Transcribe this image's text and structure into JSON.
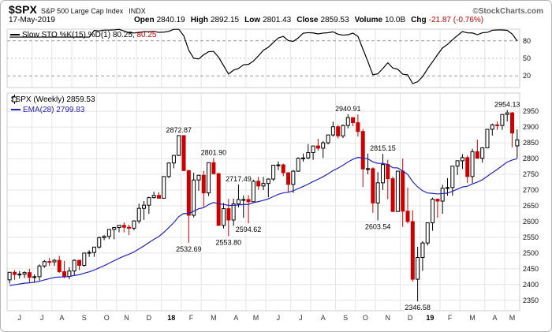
{
  "header": {
    "symbol": "$SPX",
    "name": "S&P 500 Large Cap Index",
    "exchange": "INDX",
    "credit": "©StockCharts.com",
    "date": "17-May-2019",
    "open_label": "Open",
    "open": "2840.19",
    "high_label": "High",
    "high": "2892.15",
    "low_label": "Low",
    "low": "2801.43",
    "close_label": "Close",
    "close": "2859.53",
    "vol_label": "Volume",
    "vol": "10.0B",
    "chg_label": "Chg",
    "chg": "-21.87 (-0.76%)"
  },
  "stoch_legend": {
    "series": "Slow STO %K(15) %D(1)",
    "k": "80.25,",
    "d": "80.25"
  },
  "price_legend": {
    "series": "$SPX (Weekly)",
    "close": "2859.53",
    "ema_name": "EMA(28)",
    "ema_value": "2799.83"
  },
  "colors": {
    "up": "#000000",
    "up_fill": "#ffffff",
    "down": "#cc0000",
    "ema": "#2222bb",
    "stoch": "#000000",
    "grid": "#e4e4e4",
    "ref": "#999999",
    "ref_mid": "#bbbbbb",
    "border": "#cccccc",
    "axis_text": "#111111",
    "month_text": "#333333"
  },
  "chart_data": {
    "type": "candlestick",
    "title": "$SPX (Weekly) with EMA(28) overlay and Slow Stochastic %K(15) %D(1)",
    "x_range": "Jun 2017 - May 2019, weekly bars",
    "y_domain": [
      2317,
      3008
    ],
    "y_ticks": [
      2350,
      2400,
      2450,
      2500,
      2550,
      2600,
      2650,
      2700,
      2750,
      2800,
      2850,
      2900,
      2950
    ],
    "x_tick_labels": [
      "J",
      "J",
      "A",
      "S",
      "O",
      "N",
      "D",
      "18",
      "F",
      "M",
      "A",
      "M",
      "J",
      "J",
      "A",
      "S",
      "O",
      "N",
      "D",
      "19",
      "F",
      "M",
      "A",
      "M"
    ],
    "indicator": {
      "name": "Slow STO %K(15) %D(1)",
      "k_period": 15,
      "slowing": 3,
      "k_value": 80.25,
      "d_value": 80.25,
      "ticks": [
        80,
        50,
        20
      ]
    },
    "overlays": [
      {
        "name": "EMA(28)",
        "period": 28,
        "last_value": 2799.83
      }
    ],
    "annotations": [
      {
        "d": "2018-01-26",
        "text": "2872.87",
        "side": "above"
      },
      {
        "d": "2018-02-09",
        "text": "2532.69",
        "side": "below"
      },
      {
        "d": "2018-03-16",
        "text": "2801.90",
        "side": "above"
      },
      {
        "d": "2018-04-06",
        "text": "2553.80",
        "side": "below"
      },
      {
        "d": "2018-04-20",
        "text": "2717.49",
        "side": "above"
      },
      {
        "d": "2018-05-04",
        "text": "2594.62",
        "side": "below"
      },
      {
        "d": "2018-09-21",
        "text": "2940.91",
        "side": "above"
      },
      {
        "d": "2018-11-02",
        "text": "2603.54",
        "side": "below"
      },
      {
        "d": "2018-11-09",
        "text": "2815.15",
        "side": "above"
      },
      {
        "d": "2018-12-28",
        "text": "2346.58",
        "side": "below"
      },
      {
        "d": "2019-05-03",
        "text": "2954.13",
        "side": "above"
      }
    ],
    "candles": [
      [
        "2017-06-02",
        2415,
        2440,
        2403,
        2439
      ],
      [
        "2017-06-09",
        2439,
        2446,
        2415,
        2432
      ],
      [
        "2017-06-16",
        2432,
        2443,
        2419,
        2433
      ],
      [
        "2017-06-23",
        2433,
        2442,
        2421,
        2438
      ],
      [
        "2017-06-30",
        2438,
        2450,
        2405,
        2423
      ],
      [
        "2017-07-07",
        2423,
        2432,
        2408,
        2425
      ],
      [
        "2017-07-14",
        2425,
        2464,
        2413,
        2459
      ],
      [
        "2017-07-21",
        2459,
        2478,
        2453,
        2473
      ],
      [
        "2017-07-28",
        2473,
        2484,
        2459,
        2472
      ],
      [
        "2017-08-04",
        2472,
        2481,
        2459,
        2477
      ],
      [
        "2017-08-11",
        2477,
        2491,
        2437,
        2441
      ],
      [
        "2017-08-18",
        2441,
        2475,
        2421,
        2426
      ],
      [
        "2017-08-25",
        2426,
        2455,
        2417,
        2443
      ],
      [
        "2017-09-01",
        2443,
        2480,
        2428,
        2477
      ],
      [
        "2017-09-08",
        2477,
        2479,
        2446,
        2461
      ],
      [
        "2017-09-15",
        2461,
        2500,
        2457,
        2500
      ],
      [
        "2017-09-22",
        2500,
        2509,
        2488,
        2502
      ],
      [
        "2017-09-29",
        2502,
        2519,
        2488,
        2519
      ],
      [
        "2017-10-06",
        2519,
        2552,
        2514,
        2549
      ],
      [
        "2017-10-13",
        2549,
        2557,
        2541,
        2553
      ],
      [
        "2017-10-20",
        2553,
        2575,
        2544,
        2575
      ],
      [
        "2017-10-27",
        2575,
        2583,
        2544,
        2581
      ],
      [
        "2017-11-03",
        2581,
        2588,
        2566,
        2588
      ],
      [
        "2017-11-10",
        2588,
        2597,
        2566,
        2582
      ],
      [
        "2017-11-17",
        2582,
        2590,
        2557,
        2579
      ],
      [
        "2017-11-24",
        2579,
        2604,
        2572,
        2602
      ],
      [
        "2017-12-01",
        2602,
        2657,
        2594,
        2642
      ],
      [
        "2017-12-08",
        2642,
        2665,
        2605,
        2652
      ],
      [
        "2017-12-15",
        2652,
        2679,
        2624,
        2676
      ],
      [
        "2017-12-22",
        2676,
        2695,
        2673,
        2683
      ],
      [
        "2017-12-29",
        2683,
        2693,
        2674,
        2674
      ],
      [
        "2018-01-05",
        2674,
        2743,
        2674,
        2743
      ],
      [
        "2018-01-12",
        2743,
        2788,
        2738,
        2786
      ],
      [
        "2018-01-19",
        2786,
        2810,
        2769,
        2810
      ],
      [
        "2018-01-26",
        2810,
        2872.87,
        2808,
        2873
      ],
      [
        "2018-02-02",
        2873,
        2873,
        2760,
        2762
      ],
      [
        "2018-02-09",
        2762,
        2763,
        2532.69,
        2620
      ],
      [
        "2018-02-16",
        2620,
        2755,
        2613,
        2732
      ],
      [
        "2018-02-23",
        2732,
        2748,
        2698,
        2747
      ],
      [
        "2018-03-02",
        2747,
        2761,
        2647,
        2691
      ],
      [
        "2018-03-09",
        2691,
        2787,
        2681,
        2787
      ],
      [
        "2018-03-16",
        2787,
        2801.9,
        2749,
        2752
      ],
      [
        "2018-03-23",
        2752,
        2755,
        2586,
        2588
      ],
      [
        "2018-03-29",
        2588,
        2659,
        2578,
        2641
      ],
      [
        "2018-04-06",
        2641,
        2672,
        2553.8,
        2605
      ],
      [
        "2018-04-13",
        2605,
        2673,
        2586,
        2656
      ],
      [
        "2018-04-20",
        2656,
        2717.49,
        2645,
        2670
      ],
      [
        "2018-04-27",
        2670,
        2683,
        2612,
        2670
      ],
      [
        "2018-05-04",
        2670,
        2684,
        2594.62,
        2663
      ],
      [
        "2018-05-11",
        2663,
        2733,
        2663,
        2728
      ],
      [
        "2018-05-18",
        2728,
        2742,
        2701,
        2713
      ],
      [
        "2018-05-25",
        2713,
        2742,
        2700,
        2721
      ],
      [
        "2018-06-01",
        2721,
        2737,
        2677,
        2735
      ],
      [
        "2018-06-08",
        2735,
        2779,
        2729,
        2779
      ],
      [
        "2018-06-15",
        2779,
        2791,
        2763,
        2780
      ],
      [
        "2018-06-22",
        2780,
        2784,
        2744,
        2755
      ],
      [
        "2018-06-29",
        2755,
        2756,
        2692,
        2718
      ],
      [
        "2018-07-06",
        2718,
        2764,
        2691,
        2760
      ],
      [
        "2018-07-13",
        2760,
        2804,
        2758,
        2801
      ],
      [
        "2018-07-20",
        2801,
        2816,
        2790,
        2802
      ],
      [
        "2018-07-27",
        2802,
        2846,
        2798,
        2819
      ],
      [
        "2018-08-03",
        2819,
        2840,
        2796,
        2840
      ],
      [
        "2018-08-10",
        2840,
        2863,
        2825,
        2833
      ],
      [
        "2018-08-17",
        2833,
        2856,
        2802,
        2850
      ],
      [
        "2018-08-24",
        2850,
        2876,
        2845,
        2875
      ],
      [
        "2018-08-31",
        2875,
        2917,
        2870,
        2901
      ],
      [
        "2018-09-07",
        2901,
        2907,
        2864,
        2872
      ],
      [
        "2018-09-14",
        2872,
        2908,
        2865,
        2905
      ],
      [
        "2018-09-21",
        2905,
        2940.91,
        2896,
        2930
      ],
      [
        "2018-09-28",
        2930,
        2931,
        2903,
        2914
      ],
      [
        "2018-10-05",
        2914,
        2940,
        2870,
        2886
      ],
      [
        "2018-10-12",
        2886,
        2894,
        2710,
        2767
      ],
      [
        "2018-10-19",
        2767,
        2816,
        2750,
        2768
      ],
      [
        "2018-10-26",
        2768,
        2772,
        2628,
        2659
      ],
      [
        "2018-11-02",
        2659,
        2757,
        2603.54,
        2723
      ],
      [
        "2018-11-09",
        2723,
        2815.15,
        2700,
        2781
      ],
      [
        "2018-11-16",
        2781,
        2796,
        2671,
        2736
      ],
      [
        "2018-11-23",
        2736,
        2743,
        2631,
        2632
      ],
      [
        "2018-11-30",
        2632,
        2760,
        2632,
        2760
      ],
      [
        "2018-12-07",
        2760,
        2800,
        2583,
        2633
      ],
      [
        "2018-12-14",
        2633,
        2708,
        2594,
        2600
      ],
      [
        "2018-12-21",
        2600,
        2636,
        2409,
        2417
      ],
      [
        "2018-12-28",
        2417,
        2520,
        2346.58,
        2486
      ],
      [
        "2019-01-04",
        2486,
        2538,
        2444,
        2532
      ],
      [
        "2019-01-11",
        2532,
        2597,
        2524,
        2596
      ],
      [
        "2019-01-18",
        2596,
        2676,
        2571,
        2671
      ],
      [
        "2019-01-25",
        2671,
        2673,
        2612,
        2665
      ],
      [
        "2019-02-01",
        2665,
        2717,
        2625,
        2706
      ],
      [
        "2019-02-08",
        2706,
        2738,
        2682,
        2708
      ],
      [
        "2019-02-15",
        2708,
        2776,
        2682,
        2776
      ],
      [
        "2019-02-22",
        2776,
        2794,
        2748,
        2793
      ],
      [
        "2019-03-01",
        2793,
        2814,
        2767,
        2803
      ],
      [
        "2019-03-08",
        2803,
        2810,
        2722,
        2743
      ],
      [
        "2019-03-15",
        2743,
        2831,
        2722,
        2822
      ],
      [
        "2019-03-22",
        2822,
        2860,
        2800,
        2801
      ],
      [
        "2019-03-29",
        2801,
        2836,
        2787,
        2834
      ],
      [
        "2019-04-05",
        2834,
        2893,
        2834,
        2893
      ],
      [
        "2019-04-12",
        2893,
        2911,
        2873,
        2907
      ],
      [
        "2019-04-18",
        2907,
        2918,
        2891,
        2905
      ],
      [
        "2019-04-26",
        2905,
        2940,
        2891,
        2940
      ],
      [
        "2019-05-03",
        2940,
        2954.13,
        2918,
        2945
      ],
      [
        "2019-05-10",
        2945,
        2948,
        2836,
        2881
      ],
      [
        "2019-05-17",
        2840.19,
        2892.15,
        2801.43,
        2859.53
      ]
    ]
  }
}
